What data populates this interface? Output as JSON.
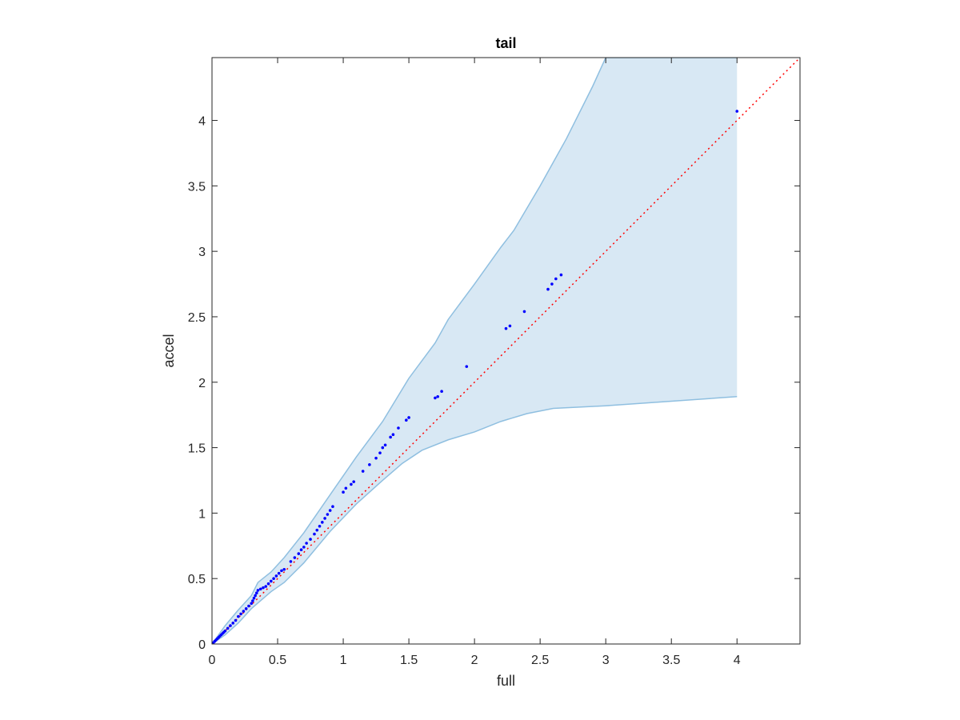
{
  "chart_data": {
    "type": "scatter",
    "title": "tail",
    "xlabel": "full",
    "ylabel": "accel",
    "xlim": [
      0,
      4.48
    ],
    "ylim": [
      0,
      4.48
    ],
    "grid": false,
    "x_ticks": [
      0,
      0.5,
      1,
      1.5,
      2,
      2.5,
      3,
      3.5,
      4
    ],
    "x_tick_labels": [
      "0",
      "0.5",
      "1",
      "1.5",
      "2",
      "2.5",
      "3",
      "3.5",
      "4"
    ],
    "y_ticks": [
      0,
      0.5,
      1,
      1.5,
      2,
      2.5,
      3,
      3.5,
      4
    ],
    "y_tick_labels": [
      "0",
      "0.5",
      "1",
      "1.5",
      "2",
      "2.5",
      "3",
      "3.5",
      "4"
    ],
    "colors": {
      "points": "#0000ff",
      "reference_line": "#ff0000",
      "band_fill": "#d8e8f4",
      "band_edge": "#8fbfe0",
      "axes": "#262626"
    },
    "reference_line": {
      "x": [
        0,
        4.48
      ],
      "y": [
        0,
        4.48
      ]
    },
    "band": {
      "upper": [
        [
          0,
          0
        ],
        [
          0.1,
          0.14
        ],
        [
          0.2,
          0.26
        ],
        [
          0.3,
          0.37
        ],
        [
          0.35,
          0.47
        ],
        [
          0.45,
          0.55
        ],
        [
          0.55,
          0.66
        ],
        [
          0.7,
          0.85
        ],
        [
          0.9,
          1.14
        ],
        [
          1.1,
          1.43
        ],
        [
          1.3,
          1.7
        ],
        [
          1.5,
          2.03
        ],
        [
          1.7,
          2.3
        ],
        [
          1.8,
          2.48
        ],
        [
          2.0,
          2.75
        ],
        [
          2.2,
          3.03
        ],
        [
          2.3,
          3.16
        ],
        [
          2.5,
          3.5
        ],
        [
          2.6,
          3.68
        ],
        [
          2.7,
          3.86
        ],
        [
          2.9,
          4.26
        ],
        [
          3.0,
          4.48
        ],
        [
          4.0,
          4.48
        ]
      ],
      "lower": [
        [
          0,
          0
        ],
        [
          0.1,
          0.07
        ],
        [
          0.2,
          0.16
        ],
        [
          0.3,
          0.27
        ],
        [
          0.45,
          0.4
        ],
        [
          0.55,
          0.47
        ],
        [
          0.7,
          0.62
        ],
        [
          0.9,
          0.86
        ],
        [
          1.1,
          1.07
        ],
        [
          1.3,
          1.25
        ],
        [
          1.45,
          1.38
        ],
        [
          1.6,
          1.48
        ],
        [
          1.8,
          1.56
        ],
        [
          2.0,
          1.62
        ],
        [
          2.2,
          1.7
        ],
        [
          2.4,
          1.76
        ],
        [
          2.6,
          1.8
        ],
        [
          3.0,
          1.82
        ],
        [
          4.0,
          1.89
        ]
      ]
    },
    "points": [
      [
        0.0,
        0.0
      ],
      [
        0.01,
        0.01
      ],
      [
        0.02,
        0.02
      ],
      [
        0.03,
        0.03
      ],
      [
        0.04,
        0.04
      ],
      [
        0.05,
        0.05
      ],
      [
        0.06,
        0.06
      ],
      [
        0.07,
        0.07
      ],
      [
        0.08,
        0.08
      ],
      [
        0.09,
        0.09
      ],
      [
        0.1,
        0.1
      ],
      [
        0.12,
        0.12
      ],
      [
        0.14,
        0.14
      ],
      [
        0.16,
        0.16
      ],
      [
        0.18,
        0.18
      ],
      [
        0.2,
        0.21
      ],
      [
        0.22,
        0.23
      ],
      [
        0.24,
        0.25
      ],
      [
        0.26,
        0.27
      ],
      [
        0.28,
        0.29
      ],
      [
        0.3,
        0.31
      ],
      [
        0.31,
        0.33
      ],
      [
        0.32,
        0.35
      ],
      [
        0.33,
        0.37
      ],
      [
        0.34,
        0.39
      ],
      [
        0.35,
        0.41
      ],
      [
        0.37,
        0.42
      ],
      [
        0.39,
        0.43
      ],
      [
        0.41,
        0.44
      ],
      [
        0.43,
        0.46
      ],
      [
        0.45,
        0.48
      ],
      [
        0.47,
        0.5
      ],
      [
        0.49,
        0.52
      ],
      [
        0.51,
        0.54
      ],
      [
        0.53,
        0.56
      ],
      [
        0.55,
        0.57
      ],
      [
        0.6,
        0.63
      ],
      [
        0.63,
        0.66
      ],
      [
        0.66,
        0.69
      ],
      [
        0.68,
        0.72
      ],
      [
        0.7,
        0.74
      ],
      [
        0.72,
        0.77
      ],
      [
        0.75,
        0.8
      ],
      [
        0.78,
        0.84
      ],
      [
        0.8,
        0.87
      ],
      [
        0.82,
        0.9
      ],
      [
        0.84,
        0.93
      ],
      [
        0.86,
        0.96
      ],
      [
        0.88,
        0.99
      ],
      [
        0.9,
        1.02
      ],
      [
        0.92,
        1.05
      ],
      [
        1.0,
        1.16
      ],
      [
        1.02,
        1.19
      ],
      [
        1.06,
        1.22
      ],
      [
        1.08,
        1.24
      ],
      [
        1.15,
        1.32
      ],
      [
        1.2,
        1.37
      ],
      [
        1.25,
        1.42
      ],
      [
        1.28,
        1.46
      ],
      [
        1.3,
        1.5
      ],
      [
        1.32,
        1.52
      ],
      [
        1.36,
        1.58
      ],
      [
        1.38,
        1.6
      ],
      [
        1.42,
        1.65
      ],
      [
        1.48,
        1.71
      ],
      [
        1.5,
        1.73
      ],
      [
        1.7,
        1.88
      ],
      [
        1.72,
        1.89
      ],
      [
        1.75,
        1.93
      ],
      [
        1.94,
        2.12
      ],
      [
        2.24,
        2.41
      ],
      [
        2.27,
        2.43
      ],
      [
        2.38,
        2.54
      ],
      [
        2.56,
        2.71
      ],
      [
        2.59,
        2.75
      ],
      [
        2.62,
        2.79
      ],
      [
        2.66,
        2.82
      ],
      [
        4.0,
        4.07
      ]
    ]
  }
}
